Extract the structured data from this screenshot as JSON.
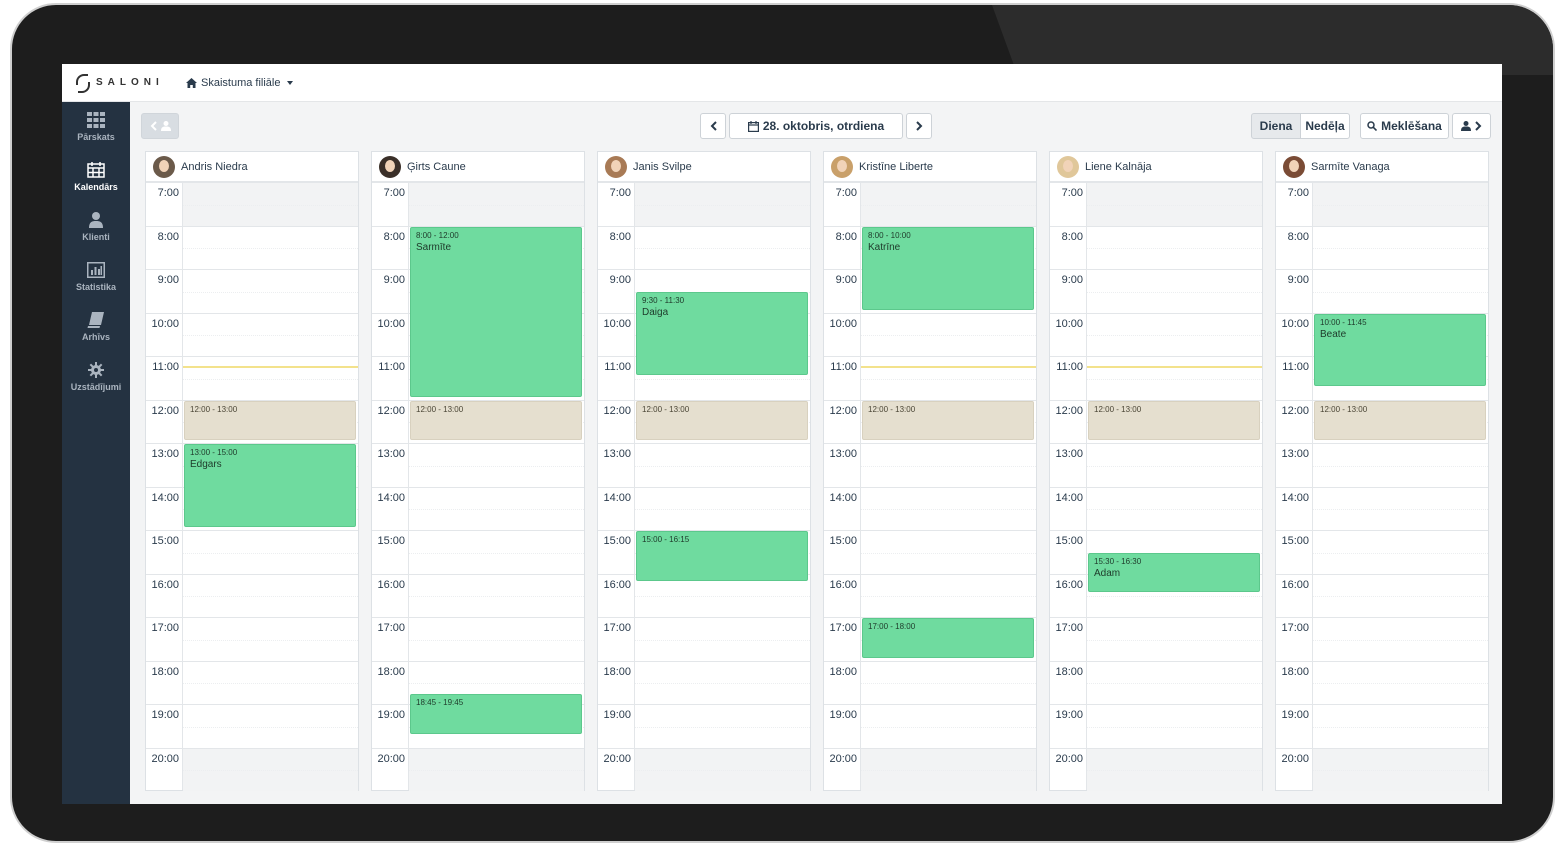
{
  "brand": {
    "name": "SALONI"
  },
  "branch": {
    "label": "Skaistuma filiāle"
  },
  "sidebar": {
    "items": [
      {
        "label": "Pārskats",
        "icon": "grid-icon",
        "active": false
      },
      {
        "label": "Kalendārs",
        "icon": "calendar-icon",
        "active": true
      },
      {
        "label": "Klienti",
        "icon": "user-icon",
        "active": false
      },
      {
        "label": "Statistika",
        "icon": "bar-chart-icon",
        "active": false
      },
      {
        "label": "Arhīvs",
        "icon": "book-icon",
        "active": false
      },
      {
        "label": "Uzstādījumi",
        "icon": "gear-icon",
        "active": false
      }
    ]
  },
  "toolbar": {
    "date_label": "28. oktobris, otrdiena",
    "view_day": "Diena",
    "view_week": "Nedēļa",
    "search_label": "Meklēšana"
  },
  "hours": [
    "7:00",
    "8:00",
    "9:00",
    "10:00",
    "11:00",
    "12:00",
    "13:00",
    "14:00",
    "15:00",
    "16:00",
    "17:00",
    "18:00",
    "19:00",
    "20:00"
  ],
  "staff": [
    {
      "name": "Andris Niedra",
      "avatar_color": "#6b5a4a",
      "events": [
        {
          "time": "12:00 - 13:00",
          "client": "",
          "type": "break"
        },
        {
          "time": "13:00 - 15:00",
          "client": "Edgars",
          "type": "booking"
        }
      ]
    },
    {
      "name": "Ģirts Caune",
      "avatar_color": "#3a2f28",
      "events": [
        {
          "time": "8:00 - 12:00",
          "client": "Sarmīte",
          "type": "booking"
        },
        {
          "time": "12:00 - 13:00",
          "client": "",
          "type": "break"
        },
        {
          "time": "18:45 - 19:45",
          "client": "",
          "type": "booking"
        }
      ]
    },
    {
      "name": "Janis Svilpe",
      "avatar_color": "#a87a55",
      "events": [
        {
          "time": "9:30 - 11:30",
          "client": "Daiga",
          "type": "booking"
        },
        {
          "time": "12:00 - 13:00",
          "client": "",
          "type": "break"
        },
        {
          "time": "15:00 - 16:15",
          "client": "",
          "type": "booking"
        }
      ]
    },
    {
      "name": "Kristīne Liberte",
      "avatar_color": "#c9a06a",
      "events": [
        {
          "time": "8:00 - 10:00",
          "client": "Katrīne",
          "type": "booking"
        },
        {
          "time": "12:00 - 13:00",
          "client": "",
          "type": "break"
        },
        {
          "time": "17:00 - 18:00",
          "client": "",
          "type": "booking"
        }
      ]
    },
    {
      "name": "Liene Kalnāja",
      "avatar_color": "#e0c79a",
      "events": [
        {
          "time": "12:00 - 13:00",
          "client": "",
          "type": "break"
        },
        {
          "time": "15:30 - 16:30",
          "client": "Adam",
          "type": "booking"
        }
      ]
    },
    {
      "name": "Sarmīte Vanaga",
      "avatar_color": "#7a4b35",
      "events": [
        {
          "time": "10:00 - 11:45",
          "client": "Beate",
          "type": "booking"
        },
        {
          "time": "12:00 - 13:00",
          "client": "",
          "type": "break"
        }
      ]
    }
  ],
  "current_time": "11:00",
  "colors": {
    "booking": "#6fdb9f",
    "break": "#e5dfcf",
    "sidebar": "#243241",
    "now_line": "#f3e28c"
  }
}
